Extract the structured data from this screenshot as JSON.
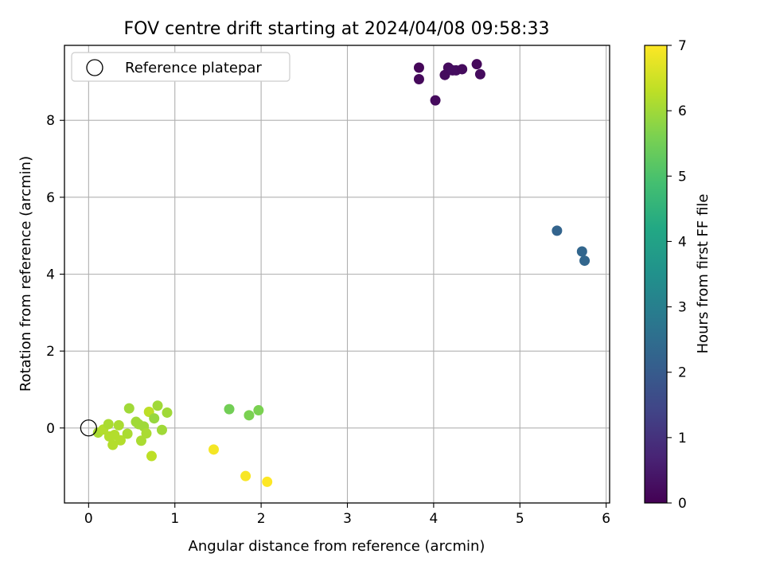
{
  "chart_data": {
    "type": "scatter",
    "title": "FOV centre drift starting at 2024/04/08 09:58:33",
    "xlabel": "Angular distance from reference (arcmin)",
    "ylabel": "Rotation from reference (arcmin)",
    "xlim": [
      -0.28,
      6.04
    ],
    "ylim": [
      -1.95,
      9.95
    ],
    "xticks": [
      0,
      1,
      2,
      3,
      4,
      5,
      6
    ],
    "yticks": [
      0,
      2,
      4,
      6,
      8
    ],
    "grid": true,
    "legend": {
      "placement": "top-left",
      "entries": [
        {
          "label": "Reference platepar",
          "marker": "open-circle"
        }
      ]
    },
    "reference_point": {
      "x": 0,
      "y": 0
    },
    "colorbar": {
      "label": "Hours from first FF file",
      "colormap": "viridis",
      "range": [
        0,
        7
      ],
      "ticks": [
        0,
        1,
        2,
        3,
        4,
        5,
        6,
        7
      ]
    },
    "points": [
      {
        "x": 3.83,
        "y": 9.37,
        "c": 0.1
      },
      {
        "x": 3.83,
        "y": 9.07,
        "c": 0.15
      },
      {
        "x": 4.02,
        "y": 8.52,
        "c": 0.2
      },
      {
        "x": 4.13,
        "y": 9.18,
        "c": 0.2
      },
      {
        "x": 4.17,
        "y": 9.37,
        "c": 0.2
      },
      {
        "x": 4.22,
        "y": 9.3,
        "c": 0.25
      },
      {
        "x": 4.26,
        "y": 9.3,
        "c": 0.25
      },
      {
        "x": 4.33,
        "y": 9.33,
        "c": 0.2
      },
      {
        "x": 4.5,
        "y": 9.46,
        "c": 0.15
      },
      {
        "x": 4.54,
        "y": 9.2,
        "c": 0.2
      },
      {
        "x": 5.43,
        "y": 5.13,
        "c": 2.25
      },
      {
        "x": 5.72,
        "y": 4.59,
        "c": 2.3
      },
      {
        "x": 5.75,
        "y": 4.35,
        "c": 2.3
      },
      {
        "x": 0.11,
        "y": -0.12,
        "c": 6.1
      },
      {
        "x": 0.17,
        "y": -0.04,
        "c": 6.2
      },
      {
        "x": 0.23,
        "y": 0.1,
        "c": 6.1
      },
      {
        "x": 0.24,
        "y": -0.22,
        "c": 6.2
      },
      {
        "x": 0.28,
        "y": -0.44,
        "c": 6.2
      },
      {
        "x": 0.3,
        "y": -0.18,
        "c": 6.2
      },
      {
        "x": 0.35,
        "y": 0.07,
        "c": 6.1
      },
      {
        "x": 0.37,
        "y": -0.32,
        "c": 6.2
      },
      {
        "x": 0.45,
        "y": -0.15,
        "c": 6.1
      },
      {
        "x": 0.47,
        "y": 0.51,
        "c": 6.0
      },
      {
        "x": 0.55,
        "y": 0.16,
        "c": 6.0
      },
      {
        "x": 0.58,
        "y": 0.1,
        "c": 6.0
      },
      {
        "x": 0.61,
        "y": -0.33,
        "c": 6.1
      },
      {
        "x": 0.64,
        "y": 0.04,
        "c": 6.0
      },
      {
        "x": 0.67,
        "y": -0.14,
        "c": 6.1
      },
      {
        "x": 0.7,
        "y": 0.42,
        "c": 6.3
      },
      {
        "x": 0.73,
        "y": -0.73,
        "c": 6.3
      },
      {
        "x": 0.76,
        "y": 0.25,
        "c": 5.9
      },
      {
        "x": 0.8,
        "y": 0.58,
        "c": 6.0
      },
      {
        "x": 0.85,
        "y": -0.05,
        "c": 6.0
      },
      {
        "x": 0.91,
        "y": 0.4,
        "c": 6.0
      },
      {
        "x": 1.45,
        "y": -0.56,
        "c": 6.9
      },
      {
        "x": 1.63,
        "y": 0.49,
        "c": 5.5
      },
      {
        "x": 1.82,
        "y": -1.25,
        "c": 6.95
      },
      {
        "x": 1.86,
        "y": 0.33,
        "c": 5.6
      },
      {
        "x": 1.97,
        "y": 0.46,
        "c": 5.6
      },
      {
        "x": 2.07,
        "y": -1.4,
        "c": 7.0
      }
    ]
  }
}
